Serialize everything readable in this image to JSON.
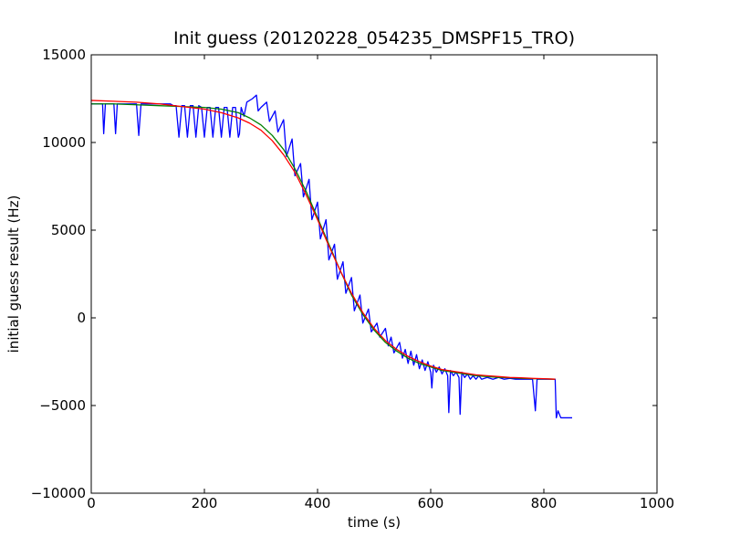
{
  "chart_data": {
    "type": "line",
    "title": "Init guess (20120228_054235_DMSPF15_TRO)",
    "xlabel": "time (s)",
    "ylabel": "initial guess result (Hz)",
    "xlim": [
      0,
      1000
    ],
    "ylim": [
      -10000,
      15000
    ],
    "xticks": [
      "0",
      "200",
      "400",
      "600",
      "800",
      "1000"
    ],
    "yticks": [
      "−10000",
      "−5000",
      "0",
      "5000",
      "10000",
      "15000"
    ],
    "grid": false,
    "legend": "none",
    "series": [
      {
        "color": "#0000ff",
        "points": [
          [
            0,
            12200
          ],
          [
            10,
            12200
          ],
          [
            20,
            12200
          ],
          [
            22,
            10500
          ],
          [
            25,
            12200
          ],
          [
            40,
            12200
          ],
          [
            43,
            10500
          ],
          [
            46,
            12200
          ],
          [
            80,
            12200
          ],
          [
            84,
            10400
          ],
          [
            88,
            12200
          ],
          [
            140,
            12200
          ],
          [
            145,
            12100
          ],
          [
            150,
            12100
          ],
          [
            155,
            10300
          ],
          [
            160,
            12100
          ],
          [
            165,
            12100
          ],
          [
            170,
            10300
          ],
          [
            175,
            12100
          ],
          [
            180,
            12100
          ],
          [
            185,
            10300
          ],
          [
            190,
            12100
          ],
          [
            195,
            12000
          ],
          [
            200,
            10300
          ],
          [
            205,
            12000
          ],
          [
            210,
            12000
          ],
          [
            215,
            10300
          ],
          [
            220,
            12000
          ],
          [
            225,
            12000
          ],
          [
            230,
            10300
          ],
          [
            235,
            12000
          ],
          [
            240,
            12000
          ],
          [
            245,
            10300
          ],
          [
            250,
            12000
          ],
          [
            255,
            12000
          ],
          [
            260,
            10300
          ],
          [
            262,
            10500
          ],
          [
            265,
            12000
          ],
          [
            270,
            11500
          ],
          [
            275,
            12300
          ],
          [
            285,
            12500
          ],
          [
            292,
            12700
          ],
          [
            295,
            11800
          ],
          [
            300,
            12000
          ],
          [
            310,
            12300
          ],
          [
            315,
            11200
          ],
          [
            325,
            11800
          ],
          [
            330,
            10600
          ],
          [
            340,
            11300
          ],
          [
            345,
            9200
          ],
          [
            355,
            10200
          ],
          [
            360,
            8100
          ],
          [
            370,
            8800
          ],
          [
            375,
            6900
          ],
          [
            385,
            7900
          ],
          [
            390,
            5600
          ],
          [
            400,
            6600
          ],
          [
            405,
            4500
          ],
          [
            415,
            5600
          ],
          [
            420,
            3300
          ],
          [
            430,
            4200
          ],
          [
            435,
            2200
          ],
          [
            445,
            3200
          ],
          [
            450,
            1400
          ],
          [
            460,
            2300
          ],
          [
            465,
            400
          ],
          [
            475,
            1300
          ],
          [
            480,
            -300
          ],
          [
            490,
            500
          ],
          [
            495,
            -800
          ],
          [
            505,
            -300
          ],
          [
            510,
            -1100
          ],
          [
            520,
            -600
          ],
          [
            525,
            -1600
          ],
          [
            530,
            -1100
          ],
          [
            535,
            -2000
          ],
          [
            545,
            -1400
          ],
          [
            550,
            -2300
          ],
          [
            555,
            -1800
          ],
          [
            560,
            -2600
          ],
          [
            565,
            -1900
          ],
          [
            570,
            -2700
          ],
          [
            575,
            -2100
          ],
          [
            580,
            -2900
          ],
          [
            585,
            -2400
          ],
          [
            590,
            -3000
          ],
          [
            595,
            -2500
          ],
          [
            600,
            -3100
          ],
          [
            602,
            -4000
          ],
          [
            605,
            -2700
          ],
          [
            610,
            -3100
          ],
          [
            615,
            -2800
          ],
          [
            620,
            -3200
          ],
          [
            625,
            -2900
          ],
          [
            630,
            -3300
          ],
          [
            632,
            -5400
          ],
          [
            635,
            -3000
          ],
          [
            640,
            -3300
          ],
          [
            645,
            -3100
          ],
          [
            650,
            -3400
          ],
          [
            652,
            -5500
          ],
          [
            655,
            -3100
          ],
          [
            660,
            -3400
          ],
          [
            665,
            -3200
          ],
          [
            670,
            -3500
          ],
          [
            675,
            -3300
          ],
          [
            680,
            -3500
          ],
          [
            685,
            -3300
          ],
          [
            690,
            -3500
          ],
          [
            700,
            -3400
          ],
          [
            710,
            -3500
          ],
          [
            720,
            -3400
          ],
          [
            730,
            -3500
          ],
          [
            740,
            -3450
          ],
          [
            750,
            -3500
          ],
          [
            760,
            -3500
          ],
          [
            770,
            -3500
          ],
          [
            780,
            -3500
          ],
          [
            785,
            -5300
          ],
          [
            788,
            -3500
          ],
          [
            800,
            -3500
          ],
          [
            810,
            -3500
          ],
          [
            820,
            -3500
          ],
          [
            822,
            -5700
          ],
          [
            825,
            -5300
          ],
          [
            830,
            -5700
          ],
          [
            840,
            -5700
          ],
          [
            850,
            -5700
          ]
        ]
      },
      {
        "color": "#008000",
        "points": [
          [
            0,
            12200
          ],
          [
            40,
            12200
          ],
          [
            80,
            12150
          ],
          [
            120,
            12100
          ],
          [
            160,
            12050
          ],
          [
            200,
            12000
          ],
          [
            230,
            11900
          ],
          [
            260,
            11700
          ],
          [
            280,
            11400
          ],
          [
            300,
            11000
          ],
          [
            320,
            10400
          ],
          [
            340,
            9600
          ],
          [
            360,
            8500
          ],
          [
            380,
            7200
          ],
          [
            400,
            5700
          ],
          [
            420,
            4200
          ],
          [
            440,
            2700
          ],
          [
            460,
            1300
          ],
          [
            480,
            200
          ],
          [
            500,
            -700
          ],
          [
            520,
            -1400
          ],
          [
            540,
            -1900
          ],
          [
            560,
            -2300
          ],
          [
            580,
            -2600
          ],
          [
            600,
            -2800
          ],
          [
            620,
            -3000
          ],
          [
            640,
            -3100
          ],
          [
            660,
            -3200
          ],
          [
            680,
            -3300
          ],
          [
            700,
            -3350
          ],
          [
            720,
            -3400
          ],
          [
            740,
            -3420
          ],
          [
            760,
            -3450
          ],
          [
            780,
            -3470
          ],
          [
            800,
            -3480
          ],
          [
            820,
            -3500
          ]
        ]
      },
      {
        "color": "#ff0000",
        "points": [
          [
            0,
            12400
          ],
          [
            40,
            12350
          ],
          [
            80,
            12300
          ],
          [
            120,
            12200
          ],
          [
            160,
            12050
          ],
          [
            200,
            11900
          ],
          [
            230,
            11700
          ],
          [
            260,
            11400
          ],
          [
            280,
            11100
          ],
          [
            300,
            10700
          ],
          [
            320,
            10100
          ],
          [
            340,
            9300
          ],
          [
            360,
            8300
          ],
          [
            380,
            7000
          ],
          [
            400,
            5600
          ],
          [
            420,
            4100
          ],
          [
            440,
            2700
          ],
          [
            460,
            1400
          ],
          [
            480,
            300
          ],
          [
            500,
            -600
          ],
          [
            520,
            -1300
          ],
          [
            540,
            -1800
          ],
          [
            560,
            -2200
          ],
          [
            580,
            -2500
          ],
          [
            600,
            -2750
          ],
          [
            620,
            -2950
          ],
          [
            640,
            -3050
          ],
          [
            660,
            -3150
          ],
          [
            680,
            -3250
          ],
          [
            700,
            -3300
          ],
          [
            720,
            -3350
          ],
          [
            740,
            -3400
          ],
          [
            760,
            -3420
          ],
          [
            780,
            -3450
          ],
          [
            800,
            -3470
          ],
          [
            820,
            -3500
          ]
        ]
      }
    ]
  }
}
